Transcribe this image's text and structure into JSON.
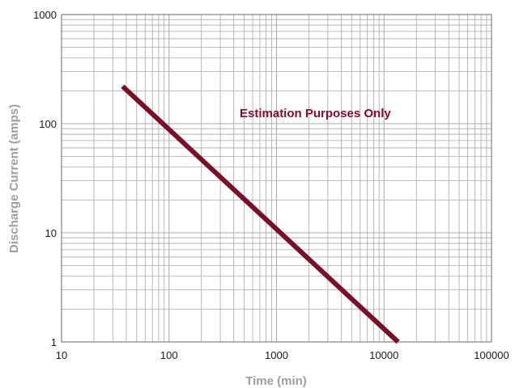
{
  "chart_data": {
    "type": "line",
    "title": "",
    "xlabel": "Time (min)",
    "ylabel": "Discharge Current (amps)",
    "x_scale": "log",
    "y_scale": "log",
    "xlim": [
      10,
      100000
    ],
    "ylim": [
      1,
      1000
    ],
    "x_ticks": [
      "10",
      "100",
      "1000",
      "10000",
      "100000"
    ],
    "y_ticks": [
      "1",
      "10",
      "100",
      "1000"
    ],
    "grid": true,
    "legend": "none",
    "annotation": "Estimation Purposes Only",
    "series": [
      {
        "color": "#7a0f2a",
        "x": [
          37,
          13500
        ],
        "y": [
          220,
          1
        ]
      }
    ]
  },
  "colors": {
    "line": "#7a0f2a",
    "annotation": "#8b0a2a",
    "grid": "#a8a8a8",
    "axis_title": "#9e9e9e"
  }
}
